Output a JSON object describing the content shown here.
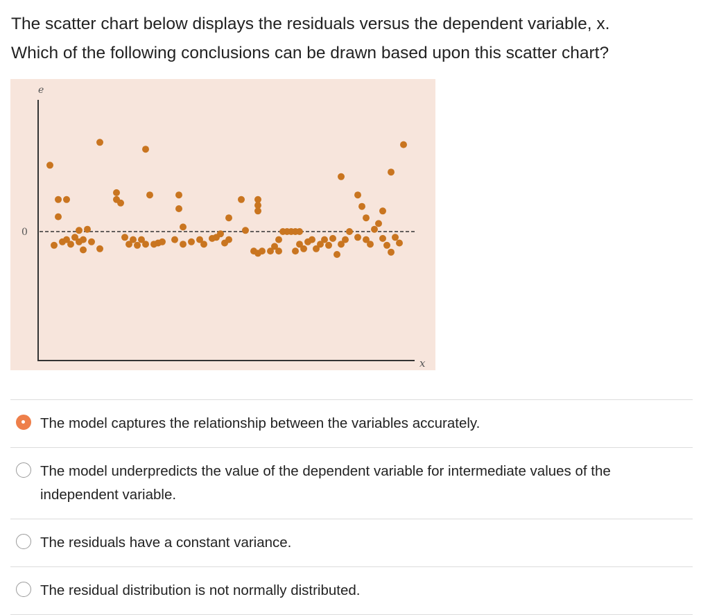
{
  "question": {
    "line1": "The scatter chart below displays the residuals versus the dependent variable, x.",
    "line2": "Which of the following conclusions can be drawn based upon this scatter chart?"
  },
  "chart_data": {
    "type": "scatter",
    "ylabel": "e",
    "xlabel": "x",
    "zero_label": "0",
    "reference_line": {
      "y": 0,
      "style": "dashed"
    },
    "point_color": "#c97520",
    "background": "#f7e5dc",
    "points": [
      [
        2,
        2.9
      ],
      [
        4,
        1.4
      ],
      [
        6,
        1.4
      ],
      [
        4,
        0.65
      ],
      [
        3,
        -0.6
      ],
      [
        5,
        -0.45
      ],
      [
        6,
        -0.35
      ],
      [
        7,
        -0.55
      ],
      [
        8,
        -0.25
      ],
      [
        9,
        -0.45
      ],
      [
        10,
        -0.8
      ],
      [
        10,
        -0.35
      ],
      [
        9,
        0.05
      ],
      [
        11,
        0.1
      ],
      [
        12,
        -0.45
      ],
      [
        14,
        -0.75
      ],
      [
        14,
        3.9
      ],
      [
        18,
        1.4
      ],
      [
        18,
        1.7
      ],
      [
        19,
        1.25
      ],
      [
        20,
        -0.25
      ],
      [
        21,
        -0.55
      ],
      [
        22,
        -0.35
      ],
      [
        23,
        -0.6
      ],
      [
        24,
        -0.35
      ],
      [
        25,
        -0.55
      ],
      [
        27,
        -0.55
      ],
      [
        28,
        -0.5
      ],
      [
        29,
        -0.45
      ],
      [
        26,
        1.6
      ],
      [
        25,
        3.6
      ],
      [
        33,
        1.6
      ],
      [
        33,
        1.0
      ],
      [
        34,
        0.2
      ],
      [
        32,
        -0.35
      ],
      [
        34,
        -0.55
      ],
      [
        36,
        -0.45
      ],
      [
        38,
        -0.35
      ],
      [
        39,
        -0.55
      ],
      [
        41,
        -0.3
      ],
      [
        42,
        -0.25
      ],
      [
        43,
        -0.1
      ],
      [
        44,
        -0.5
      ],
      [
        45,
        -0.35
      ],
      [
        45,
        0.6
      ],
      [
        48,
        1.4
      ],
      [
        49,
        0.05
      ],
      [
        51,
        -0.85
      ],
      [
        52,
        -0.95
      ],
      [
        53,
        -0.85
      ],
      [
        52,
        1.4
      ],
      [
        52,
        1.15
      ],
      [
        52,
        0.9
      ],
      [
        55,
        -0.85
      ],
      [
        56,
        -0.65
      ],
      [
        57,
        -0.85
      ],
      [
        57,
        -0.35
      ],
      [
        58,
        0.0
      ],
      [
        59,
        0.0
      ],
      [
        60,
        0.0
      ],
      [
        61,
        0.0
      ],
      [
        62,
        0.0
      ],
      [
        61,
        -0.85
      ],
      [
        62,
        -0.55
      ],
      [
        63,
        -0.75
      ],
      [
        64,
        -0.45
      ],
      [
        65,
        -0.35
      ],
      [
        66,
        -0.75
      ],
      [
        67,
        -0.55
      ],
      [
        68,
        -0.35
      ],
      [
        69,
        -0.6
      ],
      [
        70,
        -0.3
      ],
      [
        71,
        -1.0
      ],
      [
        72,
        -0.55
      ],
      [
        73,
        -0.35
      ],
      [
        74,
        0.0
      ],
      [
        72,
        2.4
      ],
      [
        76,
        1.6
      ],
      [
        77,
        1.1
      ],
      [
        78,
        0.6
      ],
      [
        76,
        -0.25
      ],
      [
        78,
        -0.35
      ],
      [
        79,
        -0.55
      ],
      [
        80,
        0.1
      ],
      [
        81,
        0.35
      ],
      [
        82,
        0.9
      ],
      [
        82,
        -0.3
      ],
      [
        83,
        -0.6
      ],
      [
        84,
        -0.9
      ],
      [
        85,
        -0.25
      ],
      [
        86,
        -0.5
      ],
      [
        84,
        2.6
      ],
      [
        87,
        3.8
      ]
    ]
  },
  "options": [
    {
      "label": "The model captures the relationship between the variables accurately.",
      "selected": true
    },
    {
      "label": "The model underpredicts the value of the dependent variable for intermediate values of the independent variable.",
      "selected": false
    },
    {
      "label": "The residuals have a constant variance.",
      "selected": false
    },
    {
      "label": "The residual distribution is not normally distributed.",
      "selected": false
    }
  ]
}
